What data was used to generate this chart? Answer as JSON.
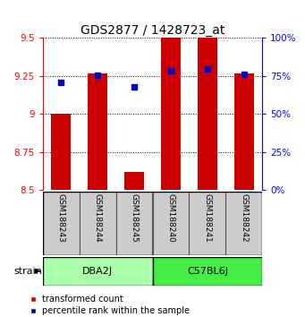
{
  "title": "GDS2877 / 1428723_at",
  "samples": [
    "GSM188243",
    "GSM188244",
    "GSM188245",
    "GSM188240",
    "GSM188241",
    "GSM188242"
  ],
  "bar_values": [
    9.0,
    9.27,
    8.62,
    9.5,
    9.5,
    9.27
  ],
  "blue_values": [
    9.21,
    9.255,
    9.18,
    9.285,
    9.295,
    9.26
  ],
  "bar_bottom": 8.5,
  "ylim_left": [
    8.5,
    9.5
  ],
  "ylim_right": [
    0,
    100
  ],
  "yticks_left": [
    8.5,
    8.75,
    9.0,
    9.25,
    9.5
  ],
  "yticks_right": [
    0,
    25,
    50,
    75,
    100
  ],
  "groups": [
    {
      "label": "DBA2J",
      "indices": [
        0,
        1,
        2
      ],
      "color": "#aaffaa"
    },
    {
      "label": "C57BL6J",
      "indices": [
        3,
        4,
        5
      ],
      "color": "#44ee44"
    }
  ],
  "bar_color": "#cc0000",
  "blue_color": "#0000cc",
  "bar_width": 0.55,
  "title_fontsize": 10,
  "tick_fontsize": 7.5,
  "sample_fontsize": 6.5,
  "group_fontsize": 8,
  "legend_fontsize": 7
}
